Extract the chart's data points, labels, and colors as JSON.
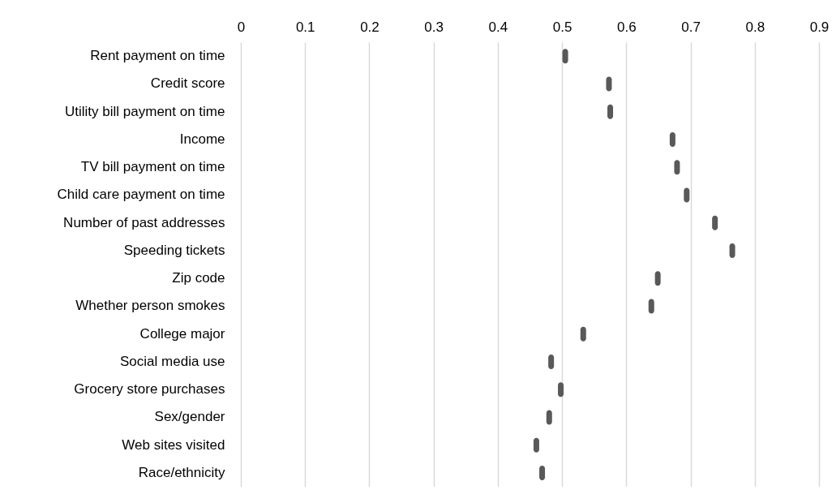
{
  "chart_data": {
    "type": "scatter",
    "orientation": "horizontal",
    "categories": [
      "Rent payment on time",
      "Credit score",
      "Utility bill payment on time",
      "Income",
      "TV bill payment on time",
      "Child care payment on time",
      "Number of past addresses",
      "Speeding tickets",
      "Zip code",
      "Whether person smokes",
      "College major",
      "Social media use",
      "Grocery store purchases",
      "Sex/gender",
      "Web sites visited",
      "Race/ethnicity"
    ],
    "values": [
      0.505,
      0.573,
      0.575,
      0.672,
      0.679,
      0.694,
      0.738,
      0.765,
      0.649,
      0.639,
      0.533,
      0.483,
      0.498,
      0.48,
      0.46,
      0.469
    ],
    "color": "#595959",
    "xlim": [
      0,
      0.9
    ],
    "xticks": [
      0,
      0.1,
      0.2,
      0.3,
      0.4,
      0.5,
      0.6,
      0.7,
      0.8,
      0.9
    ],
    "grid": "x"
  }
}
